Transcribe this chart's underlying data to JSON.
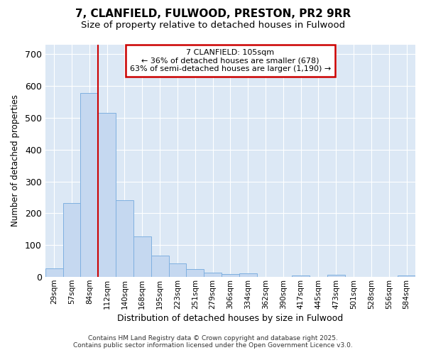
{
  "title": "7, CLANFIELD, FULWOOD, PRESTON, PR2 9RR",
  "subtitle": "Size of property relative to detached houses in Fulwood",
  "xlabel": "Distribution of detached houses by size in Fulwood",
  "ylabel": "Number of detached properties",
  "footer_line1": "Contains HM Land Registry data © Crown copyright and database right 2025.",
  "footer_line2": "Contains public sector information licensed under the Open Government Licence v3.0.",
  "categories": [
    "29sqm",
    "57sqm",
    "84sqm",
    "112sqm",
    "140sqm",
    "168sqm",
    "195sqm",
    "223sqm",
    "251sqm",
    "279sqm",
    "306sqm",
    "334sqm",
    "362sqm",
    "390sqm",
    "417sqm",
    "445sqm",
    "473sqm",
    "501sqm",
    "528sqm",
    "556sqm",
    "584sqm"
  ],
  "values": [
    28,
    233,
    578,
    516,
    242,
    128,
    68,
    42,
    25,
    14,
    10,
    11,
    0,
    0,
    5,
    0,
    8,
    0,
    0,
    0,
    5
  ],
  "bar_color": "#c5d8f0",
  "bar_edge_color": "#7fb0e0",
  "fig_bg_color": "#ffffff",
  "plot_bg_color": "#dce8f5",
  "grid_color": "#ffffff",
  "annotation_line1": "7 CLANFIELD: 105sqm",
  "annotation_line2": "← 36% of detached houses are smaller (678)",
  "annotation_line3": "63% of semi-detached houses are larger (1,190) →",
  "vline_color": "#cc0000",
  "vline_x": 2.5,
  "ylim": [
    0,
    730
  ],
  "yticks": [
    0,
    100,
    200,
    300,
    400,
    500,
    600,
    700
  ]
}
